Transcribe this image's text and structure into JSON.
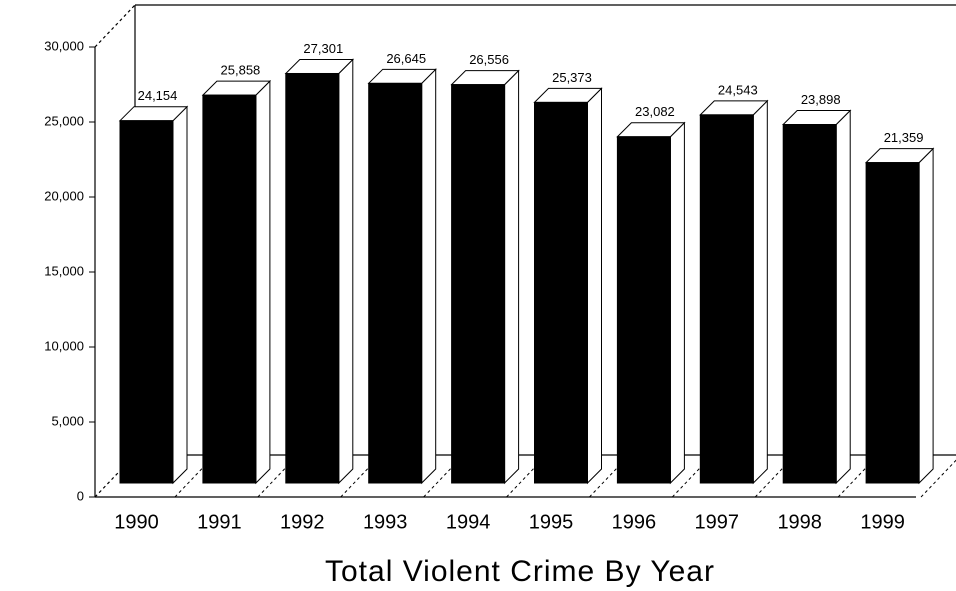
{
  "chart_data": {
    "type": "bar",
    "title": "Total Violent Crime By Year",
    "categories": [
      "1990",
      "1991",
      "1992",
      "1993",
      "1994",
      "1995",
      "1996",
      "1997",
      "1998",
      "1999"
    ],
    "values": [
      24154,
      25858,
      27301,
      26645,
      26556,
      25373,
      23082,
      24543,
      23898,
      21359
    ],
    "value_labels": [
      "24,154",
      "25,858",
      "27,301",
      "26,645",
      "26,556",
      "25,373",
      "23,082",
      "24,543",
      "23,898",
      "21,359"
    ],
    "color": "#000000",
    "ylim": [
      0,
      30000
    ],
    "yticks": [
      0,
      {
        "value": 5000,
        "label": "5,000"
      },
      {
        "value": 10000,
        "label": "10,000"
      },
      {
        "value": 15000,
        "label": "15,000"
      },
      {
        "value": 20000,
        "label": "20,000"
      },
      {
        "value": 25000,
        "label": "25,000"
      },
      {
        "value": 30000,
        "label": "30,000"
      }
    ]
  }
}
